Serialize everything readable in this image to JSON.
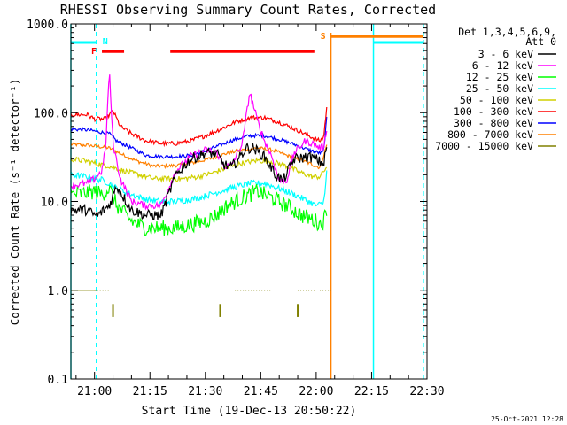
{
  "chart_data": {
    "type": "line",
    "title": "RHESSI Observing Summary Count Rates, Corrected",
    "xlabel": "Start Time (19-Dec-13 20:50:22)",
    "ylabel": "Corrected Count Rate (s⁻¹ detector⁻¹)",
    "yscale": "log",
    "ylim": [
      0.1,
      1000
    ],
    "xlim_minutes": [
      -6.4,
      90
    ],
    "x_ticks": [
      {
        "m": 0,
        "label": "21:00"
      },
      {
        "m": 15,
        "label": "21:15"
      },
      {
        "m": 30,
        "label": "21:30"
      },
      {
        "m": 45,
        "label": "21:45"
      },
      {
        "m": 60,
        "label": "22:00"
      },
      {
        "m": 75,
        "label": "22:15"
      },
      {
        "m": 90,
        "label": "22:30"
      }
    ],
    "y_ticks": [
      {
        "v": 1000,
        "label": "1000.0"
      },
      {
        "v": 100,
        "label": "100.0"
      },
      {
        "v": 10,
        "label": "10.0"
      },
      {
        "v": 1,
        "label": "1.0"
      },
      {
        "v": 0.1,
        "label": "0.1"
      }
    ],
    "legend_header": [
      "Det 1,3,4,5,6,9,",
      "Att 0"
    ],
    "series": [
      {
        "name": "3 - 6 keV",
        "color": "#000000",
        "points": [
          [
            -6.4,
            8
          ],
          [
            -2,
            8
          ],
          [
            0,
            7
          ],
          [
            1,
            7
          ],
          [
            4,
            9
          ],
          [
            6,
            15
          ],
          [
            10,
            8
          ],
          [
            14,
            7
          ],
          [
            18,
            7
          ],
          [
            22,
            20
          ],
          [
            26,
            30
          ],
          [
            30,
            35
          ],
          [
            33,
            35
          ],
          [
            35,
            26
          ],
          [
            37,
            24
          ],
          [
            39,
            30
          ],
          [
            41,
            40
          ],
          [
            43,
            40
          ],
          [
            46,
            32
          ],
          [
            49,
            20
          ],
          [
            51,
            17
          ],
          [
            54,
            30
          ],
          [
            58,
            32
          ],
          [
            60,
            30
          ],
          [
            62,
            26
          ],
          [
            63,
            45
          ]
        ]
      },
      {
        "name": "6 - 12 keV",
        "color": "#ff00ff",
        "points": [
          [
            -6.4,
            15
          ],
          [
            -2,
            16
          ],
          [
            0,
            18
          ],
          [
            2,
            22
          ],
          [
            3,
            40
          ],
          [
            4,
            300
          ],
          [
            5,
            45
          ],
          [
            7,
            18
          ],
          [
            10,
            10
          ],
          [
            14,
            9
          ],
          [
            18,
            9
          ],
          [
            22,
            22
          ],
          [
            26,
            32
          ],
          [
            30,
            38
          ],
          [
            33,
            36
          ],
          [
            35,
            25
          ],
          [
            37,
            25
          ],
          [
            40,
            45
          ],
          [
            42,
            170
          ],
          [
            44,
            85
          ],
          [
            46,
            48
          ],
          [
            48,
            32
          ],
          [
            50,
            17
          ],
          [
            52,
            17
          ],
          [
            54,
            35
          ],
          [
            57,
            48
          ],
          [
            59,
            45
          ],
          [
            61,
            40
          ],
          [
            62,
            42
          ],
          [
            63,
            70
          ]
        ]
      },
      {
        "name": "12 - 25 keV",
        "color": "#00ff00",
        "points": [
          [
            -6.4,
            12
          ],
          [
            -2,
            12.5
          ],
          [
            0,
            13
          ],
          [
            2,
            12
          ],
          [
            4,
            14
          ],
          [
            6,
            9
          ],
          [
            10,
            6
          ],
          [
            14,
            5
          ],
          [
            18,
            5
          ],
          [
            22,
            5
          ],
          [
            26,
            5.5
          ],
          [
            30,
            6
          ],
          [
            33,
            7
          ],
          [
            36,
            9
          ],
          [
            40,
            11
          ],
          [
            44,
            13
          ],
          [
            48,
            11
          ],
          [
            52,
            9
          ],
          [
            56,
            7
          ],
          [
            58,
            6.5
          ],
          [
            60,
            6
          ],
          [
            61,
            5.5
          ],
          [
            62,
            6
          ],
          [
            63,
            9
          ]
        ]
      },
      {
        "name": "25 - 50 keV",
        "color": "#00ffff",
        "points": [
          [
            -6.4,
            20
          ],
          [
            -2,
            19
          ],
          [
            0,
            18
          ],
          [
            2,
            17.5
          ],
          [
            4,
            16
          ],
          [
            6,
            14
          ],
          [
            10,
            12
          ],
          [
            14,
            10.5
          ],
          [
            18,
            10
          ],
          [
            22,
            10
          ],
          [
            26,
            10.5
          ],
          [
            30,
            11.5
          ],
          [
            34,
            13
          ],
          [
            38,
            14.5
          ],
          [
            42,
            16
          ],
          [
            46,
            16
          ],
          [
            50,
            14
          ],
          [
            54,
            12
          ],
          [
            58,
            10
          ],
          [
            60,
            9
          ],
          [
            62,
            9.5
          ],
          [
            63,
            25
          ]
        ]
      },
      {
        "name": "50 - 100 keV",
        "color": "#d0d000",
        "points": [
          [
            -6.4,
            30
          ],
          [
            -2,
            28.5
          ],
          [
            0,
            27
          ],
          [
            4,
            25
          ],
          [
            8,
            22
          ],
          [
            12,
            20
          ],
          [
            16,
            18
          ],
          [
            20,
            18
          ],
          [
            24,
            18
          ],
          [
            28,
            19
          ],
          [
            32,
            21
          ],
          [
            36,
            24
          ],
          [
            40,
            27
          ],
          [
            44,
            29
          ],
          [
            48,
            28
          ],
          [
            52,
            25
          ],
          [
            56,
            21
          ],
          [
            59,
            19
          ],
          [
            61,
            19
          ],
          [
            63,
            25
          ]
        ]
      },
      {
        "name": "100 - 300 keV",
        "color": "#ff0000",
        "points": [
          [
            -6.4,
            95
          ],
          [
            -2,
            95
          ],
          [
            0,
            85
          ],
          [
            3,
            85
          ],
          [
            5,
            105
          ],
          [
            7,
            70
          ],
          [
            10,
            58
          ],
          [
            14,
            48
          ],
          [
            18,
            45
          ],
          [
            22,
            45
          ],
          [
            26,
            48
          ],
          [
            30,
            55
          ],
          [
            34,
            65
          ],
          [
            38,
            78
          ],
          [
            42,
            88
          ],
          [
            46,
            88
          ],
          [
            50,
            78
          ],
          [
            54,
            66
          ],
          [
            58,
            55
          ],
          [
            60,
            50
          ],
          [
            61,
            48
          ],
          [
            62,
            52
          ],
          [
            63,
            130
          ]
        ]
      },
      {
        "name": "300 - 800 keV",
        "color": "#0000ff",
        "points": [
          [
            -6.4,
            65
          ],
          [
            -2,
            64
          ],
          [
            0,
            62
          ],
          [
            2,
            60
          ],
          [
            4,
            58
          ],
          [
            6,
            48
          ],
          [
            10,
            40
          ],
          [
            14,
            33
          ],
          [
            18,
            32
          ],
          [
            22,
            32
          ],
          [
            26,
            33
          ],
          [
            30,
            37
          ],
          [
            34,
            43
          ],
          [
            38,
            50
          ],
          [
            42,
            55
          ],
          [
            46,
            55
          ],
          [
            50,
            50
          ],
          [
            54,
            44
          ],
          [
            58,
            38
          ],
          [
            61,
            35
          ],
          [
            62,
            36
          ],
          [
            63,
            100
          ]
        ]
      },
      {
        "name": "800 - 7000 keV",
        "color": "#ff8000",
        "points": [
          [
            -6.4,
            44
          ],
          [
            -2,
            43
          ],
          [
            0,
            42
          ],
          [
            4,
            40
          ],
          [
            8,
            33
          ],
          [
            12,
            28
          ],
          [
            16,
            25
          ],
          [
            20,
            25
          ],
          [
            24,
            26
          ],
          [
            28,
            28
          ],
          [
            32,
            31
          ],
          [
            36,
            35
          ],
          [
            40,
            38
          ],
          [
            44,
            40
          ],
          [
            48,
            38
          ],
          [
            52,
            33
          ],
          [
            56,
            29
          ],
          [
            59,
            26
          ],
          [
            61,
            24
          ],
          [
            63,
            45
          ]
        ]
      },
      {
        "name": "7000 - 15000 keV",
        "color": "#808000",
        "points": [
          [
            -6.4,
            1
          ],
          [
            0,
            1
          ],
          [
            1,
            1
          ]
        ]
      }
    ],
    "annotations": [
      {
        "type": "flag_label",
        "text": "N",
        "color": "#00ffff"
      },
      {
        "type": "flag_label",
        "text": "F",
        "color": "#ff0000"
      },
      {
        "type": "flag_label",
        "text": "S",
        "color": "#ff8000"
      }
    ],
    "flag_bars": {
      "saa_cyan_bars_minutes": [
        [
          -6.4,
          0.5
        ],
        [
          75.5,
          89
        ]
      ],
      "flare_red_bars_minutes": [
        [
          2,
          8
        ],
        [
          20.5,
          59.5
        ]
      ],
      "saa_orange_bar_minutes": [
        [
          64,
          89
        ]
      ],
      "night_cyan_lines_minutes": [
        -6.4,
        0.5,
        75.5,
        89
      ],
      "orange_line_minutes": [
        64
      ]
    },
    "dark_yellow_markers_minutes": [
      5,
      34,
      55
    ],
    "dotted_1_level_segments_minutes": [
      [
        0,
        4
      ],
      [
        38,
        48
      ],
      [
        55,
        60
      ],
      [
        61,
        64
      ]
    ]
  },
  "footer_timestamp": "25-Oct-2021 12:28"
}
